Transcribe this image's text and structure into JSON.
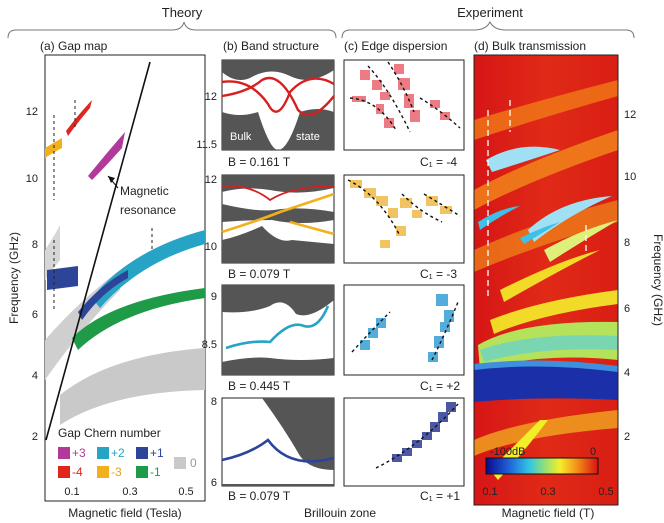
{
  "headers": {
    "theory": "Theory",
    "experiment": "Experiment"
  },
  "panels": {
    "a": {
      "title": "(a) Gap map",
      "xlabel": "Magnetic field (Tesla)",
      "ylabel": "Frequency (GHz)",
      "xticks": [
        "0.1",
        "0.3",
        "0.5"
      ],
      "yticks": [
        "2",
        "4",
        "6",
        "8",
        "10",
        "12"
      ],
      "annotations": [
        "Magnetic",
        "resonance"
      ],
      "legend": {
        "title": "Gap Chern number",
        "items": [
          {
            "label": "+3",
            "color": "#b0399a"
          },
          {
            "label": "+2",
            "color": "#27a3c5"
          },
          {
            "label": "+1",
            "color": "#2d4599"
          },
          {
            "label": "-4",
            "color": "#e0241e"
          },
          {
            "label": "-3",
            "color": "#f2b01e"
          },
          {
            "label": "-1",
            "color": "#1f9a46"
          },
          {
            "label": "0",
            "color": "#c9c9c9"
          }
        ]
      }
    },
    "b": {
      "title": "(b) Band structure",
      "xlabel": "Brillouin zone",
      "subplots": [
        {
          "field": "B = 0.161 T",
          "yticks": [
            "12",
            "11.5"
          ],
          "labels": [
            "Bulk",
            "state"
          ],
          "color": "#d61f1f"
        },
        {
          "field": "B = 0.079 T",
          "yticks": [
            "12",
            "10"
          ],
          "color": "#f2b01e"
        },
        {
          "field": "B = 0.445 T",
          "yticks": [
            "9",
            "8.5"
          ],
          "color": "#27a3c5"
        },
        {
          "field": "B = 0.079 T",
          "yticks": [
            "8",
            "6"
          ],
          "color": "#2d4599"
        }
      ]
    },
    "c": {
      "title": "(c) Edge dispersion",
      "subplots": [
        {
          "chern": "C₁ = -4",
          "color": "#d61f1f"
        },
        {
          "chern": "C₁ = -3",
          "color": "#e9a11a"
        },
        {
          "chern": "C₁ = +2",
          "color": "#1d8fc0"
        },
        {
          "chern": "C₁ = +1",
          "color": "#2d3c95"
        }
      ]
    },
    "d": {
      "title": "(d) Bulk transmission",
      "xlabel": "Magnetic field (T)",
      "ylabel": "Frequency (GHz)",
      "xticks": [
        "0.1",
        "0.3",
        "0.5"
      ],
      "yticks": [
        "2",
        "4",
        "6",
        "8",
        "10",
        "12"
      ],
      "colorbar": {
        "min": "-100dB",
        "max": "0"
      }
    }
  }
}
